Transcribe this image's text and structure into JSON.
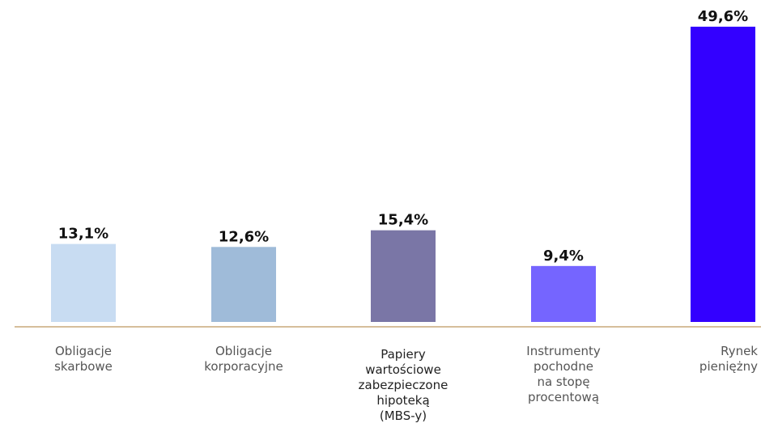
{
  "chart_data": {
    "type": "bar",
    "categories": [
      "Obligacje\nskarbowe",
      "Obligacje\nkorporacyjne",
      "Papiery\nwartościowe\nzabezpieczone\nhipoteką\n(MBS-y)",
      "Instrumenty\npochodne\nna stopę\nprocentową",
      "Rynek\npieniężny"
    ],
    "values": [
      13.1,
      12.6,
      15.4,
      9.4,
      49.6
    ],
    "value_labels": [
      "13,1%",
      "12,6%",
      "15,4%",
      "9,4%",
      "49,6%"
    ],
    "colors": [
      "#c8dcf2",
      "#9fbbd9",
      "#7a76a6",
      "#7565ff",
      "#3300ff"
    ],
    "axis_color": "#c9a97a",
    "ylim": [
      0,
      50
    ],
    "grid": false,
    "legend": "none"
  }
}
